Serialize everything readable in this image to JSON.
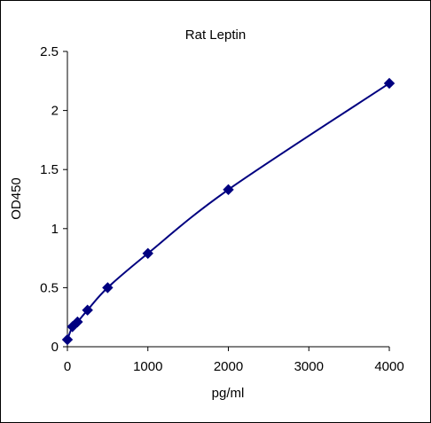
{
  "chart_data": {
    "type": "scatter",
    "title": "Rat  Leptin",
    "xlabel": "pg/ml",
    "ylabel": "OD450",
    "xlim": [
      0,
      4000
    ],
    "ylim": [
      0,
      2.5
    ],
    "x_ticks": [
      0,
      1000,
      2000,
      3000,
      4000
    ],
    "x_tick_labels": [
      "0",
      "1000",
      "2000",
      "3000",
      "4000"
    ],
    "y_ticks": [
      0,
      0.5,
      1,
      1.5,
      2,
      2.5
    ],
    "y_tick_labels": [
      "0",
      "0.5",
      "1",
      "1.5",
      "2",
      "2.5"
    ],
    "grid": false,
    "legend": "none",
    "series": [
      {
        "marker": "diamond",
        "line": "smooth",
        "color": "#000080",
        "x": [
          0,
          62.5,
          125,
          250,
          500,
          1000,
          2000,
          4000
        ],
        "y": [
          0.06,
          0.17,
          0.21,
          0.31,
          0.5,
          0.79,
          1.33,
          2.23
        ]
      }
    ]
  }
}
